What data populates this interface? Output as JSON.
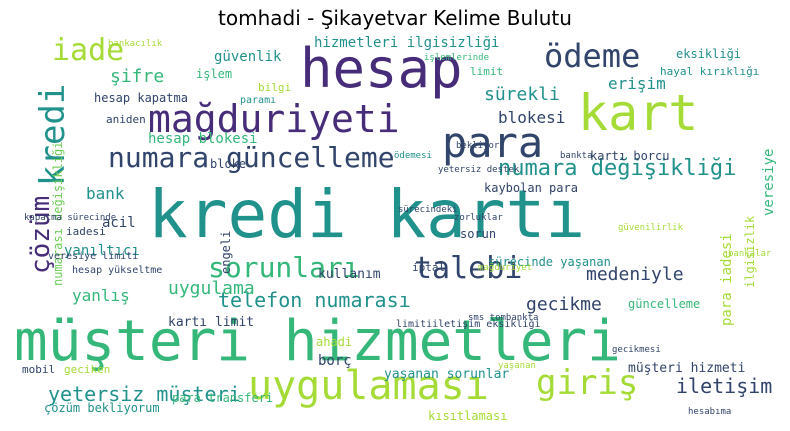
{
  "title": "tomhadi - Şikayetvar Kelime Bulutu",
  "colors": {
    "purple": "#472c7a",
    "navy": "#31446b",
    "teal": "#21918c",
    "green": "#35b779",
    "lime": "#a5db36",
    "lightgreen": "#6ece58"
  },
  "words": [
    "kredi kartı",
    "müşteri hizmetleri",
    "hesap",
    "kart",
    "mağduriyeti",
    "para",
    "ödeme",
    "uygulaması",
    "kredi",
    "numara güncelleme",
    "sorunları",
    "talebi",
    "giriş",
    "iade",
    "çözüm",
    "numara değişikliği",
    "yetersiz müşteri",
    "telefon numarası",
    "medeniyle",
    "şifre",
    "güvenlik",
    "hizmetleri ilgisizliği",
    "blokesi",
    "sürekli",
    "erişim",
    "iletişim",
    "uygulama",
    "yanlış",
    "gecikme",
    "yanıltıcı",
    "bank",
    "hesap blokesi",
    "hesap kapatma",
    "kartı limit",
    "borç",
    "yaşanan sorunlar",
    "çözüm bekliyorum",
    "müşteri hizmeti",
    "para transferi",
    "eksikliği",
    "hayal kırıklığı",
    "kartı borcu",
    "kaybolan para",
    "süre",
    "sorun",
    "bloke",
    "iptal",
    "acil",
    "engeli",
    "ahadi",
    "güncelleme",
    "geciken",
    "sms tombankta",
    "mobil",
    "kullanım",
    "limit",
    "işlem",
    "aniden",
    "paramı",
    "bilgi",
    "iadesi",
    "veresiye limiti",
    "hesap yükseltme",
    "sürecinde yaşanan",
    "para iadesi",
    "ilgisizlik",
    "hesabıma",
    "izinsiz",
    "kısıtlaması",
    "limitiiletişim eksikliği",
    "kapatma sürecinde",
    "numarası değişikliği",
    "veresiye",
    "ödemesi",
    "yetersiz destek",
    "bankacılık",
    "bankalar",
    "işlemlerinde",
    "gecikmesi",
    "güvenilirlik",
    "bekliyor",
    "sürecindeki",
    "bankta",
    "zorluklar",
    "yaşanan",
    "mağduriyet"
  ]
}
